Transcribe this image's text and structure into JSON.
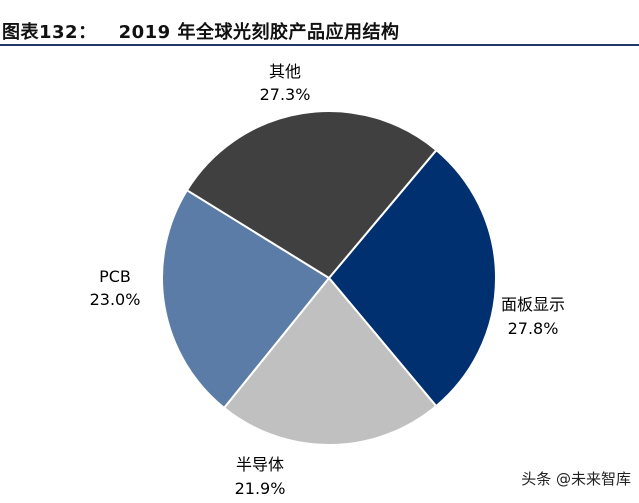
{
  "header": {
    "figure_label": "图表132：",
    "title": "2019 年全球光刻胶产品应用结构"
  },
  "watermark": "头条 @未来智库",
  "chart_data": {
    "type": "pie",
    "title": "2019 年全球光刻胶产品应用结构",
    "start_angle_deg": -50,
    "direction": "clockwise",
    "slices": [
      {
        "label": "面板显示",
        "percent_label": "27.8%",
        "value": 27.8,
        "color": "#003070"
      },
      {
        "label": "半导体",
        "percent_label": "21.9%",
        "value": 21.9,
        "color": "#c0c0c0"
      },
      {
        "label": "PCB",
        "percent_label": "23.0%",
        "value": 23.0,
        "color": "#5b7ca6"
      },
      {
        "label": "其他",
        "percent_label": "27.3%",
        "value": 27.3,
        "color": "#404040"
      }
    ],
    "legend": "none"
  }
}
